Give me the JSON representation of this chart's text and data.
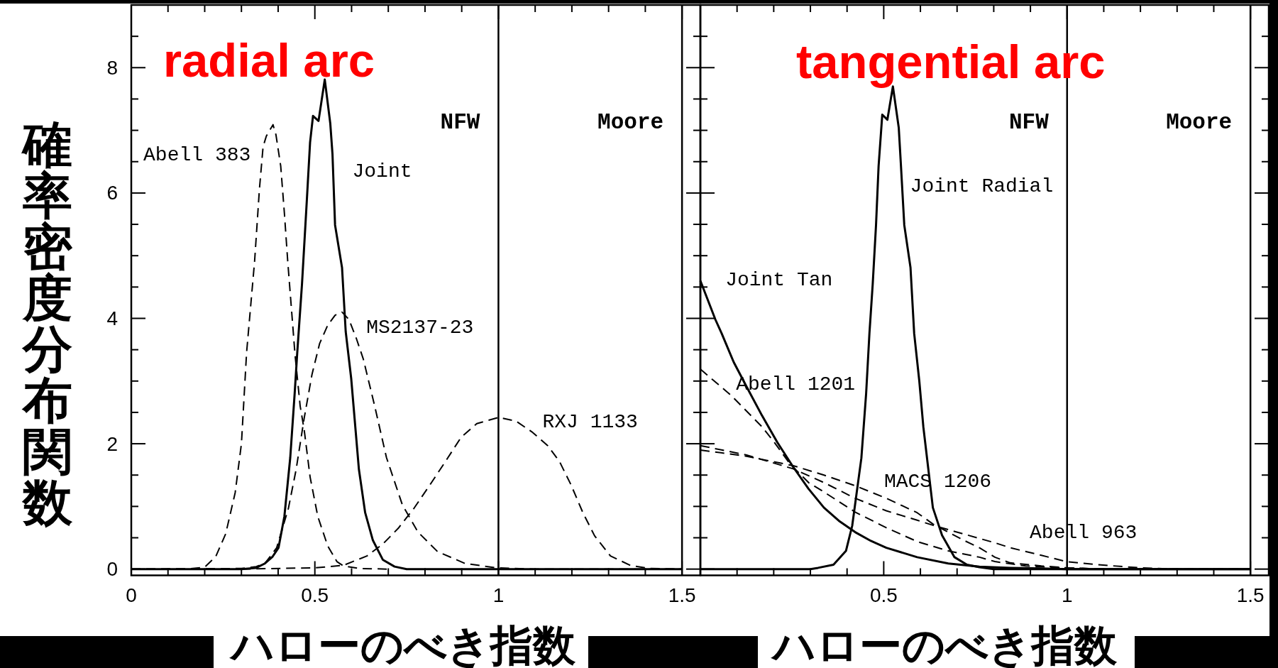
{
  "chart_data": [
    {
      "type": "line",
      "title": "radial arc",
      "xlabel": "ハローのべき指数",
      "ylabel": "確率密度分布関数",
      "xlim": [
        0,
        1.55
      ],
      "ylim": [
        -0.1,
        9
      ],
      "xticks": [
        0,
        {
          "value": 0.1,
          "label": null
        },
        {
          "value": 0.2,
          "label": null
        },
        {
          "value": 0.3,
          "label": null
        },
        {
          "value": 0.4,
          "label": null
        },
        0.5,
        {
          "value": 0.6,
          "label": null
        },
        {
          "value": 0.7,
          "label": null
        },
        {
          "value": 0.8,
          "label": null
        },
        {
          "value": 0.9,
          "label": null
        },
        1,
        {
          "value": 1.1,
          "label": null
        },
        {
          "value": 1.2,
          "label": null
        },
        {
          "value": 1.3,
          "label": null
        },
        {
          "value": 1.4,
          "label": null
        },
        1.5
      ],
      "yticks": [
        0,
        {
          "value": 0.5,
          "label": null
        },
        {
          "value": 1,
          "label": null
        },
        {
          "value": 1.5,
          "label": null
        },
        2,
        {
          "value": 2.5,
          "label": null
        },
        {
          "value": 3,
          "label": null
        },
        {
          "value": 3.5,
          "label": null
        },
        4,
        {
          "value": 4.5,
          "label": null
        },
        {
          "value": 5,
          "label": null
        },
        {
          "value": 5.5,
          "label": null
        },
        6,
        {
          "value": 6.5,
          "label": null
        },
        {
          "value": 7,
          "label": null
        },
        {
          "value": 7.5,
          "label": null
        },
        8,
        {
          "value": 8.5,
          "label": null
        }
      ],
      "ref_lines": [
        {
          "axis": "x",
          "value": 1,
          "label": "NFW"
        },
        {
          "axis": "x",
          "value": 1.5,
          "label": "Moore"
        }
      ],
      "series": [
        {
          "name": "Abell 383",
          "color": "#000000",
          "line_style": "dashed",
          "x": [
            0,
            0.15,
            0.2,
            0.23,
            0.257,
            0.283,
            0.3,
            0.314,
            0.336,
            0.349,
            0.359,
            0.368,
            0.386,
            0.394,
            0.407,
            0.417,
            0.426,
            0.436,
            0.446,
            0.46,
            0.471,
            0.487,
            0.508,
            0.535,
            0.56,
            0.578,
            0.62,
            0.7
          ],
          "values": [
            0,
            0,
            0.03,
            0.2,
            0.56,
            1.22,
            2.0,
            3.45,
            4.92,
            6.06,
            6.74,
            6.91,
            7.09,
            6.93,
            6.43,
            5.68,
            4.92,
            4.17,
            3.42,
            2.6,
            2.22,
            1.47,
            0.84,
            0.37,
            0.12,
            0.05,
            0.01,
            0
          ]
        },
        {
          "name": "Joint",
          "color": "#000000",
          "line_style": "solid",
          "x": [
            0,
            0.3,
            0.34,
            0.364,
            0.385,
            0.401,
            0.417,
            0.433,
            0.445,
            0.452,
            0.465,
            0.478,
            0.487,
            0.495,
            0.51,
            0.527,
            0.542,
            0.548,
            0.555,
            0.574,
            0.584,
            0.599,
            0.62,
            0.637,
            0.658,
            0.685,
            0.717,
            0.75,
            1.5
          ],
          "values": [
            0,
            0,
            0.02,
            0.09,
            0.2,
            0.34,
            0.84,
            1.78,
            2.8,
            3.45,
            4.55,
            5.87,
            6.81,
            7.23,
            7.15,
            7.81,
            7.11,
            6.62,
            5.49,
            4.81,
            3.79,
            3.04,
            1.59,
            0.9,
            0.46,
            0.15,
            0.04,
            0,
            0
          ]
        },
        {
          "name": "MS2137-23",
          "color": "#000000",
          "line_style": "dashed",
          "x": [
            0,
            0.3,
            0.34,
            0.364,
            0.396,
            0.428,
            0.449,
            0.471,
            0.492,
            0.513,
            0.535,
            0.555,
            0.574,
            0.593,
            0.613,
            0.632,
            0.663,
            0.695,
            0.738,
            0.781,
            0.834,
            0.909,
            0.995,
            1.1,
            1.5
          ],
          "values": [
            0,
            0.01,
            0.04,
            0.09,
            0.34,
            0.97,
            1.59,
            2.41,
            3.1,
            3.6,
            3.89,
            4.05,
            4.1,
            3.98,
            3.68,
            3.35,
            2.6,
            1.78,
            1.03,
            0.59,
            0.28,
            0.09,
            0.02,
            0,
            0
          ]
        },
        {
          "name": "RXJ 1133",
          "color": "#000000",
          "line_style": "dashed",
          "x": [
            0.3,
            0.5,
            0.578,
            0.642,
            0.685,
            0.727,
            0.77,
            0.813,
            0.856,
            0.898,
            0.941,
            1.0,
            1.048,
            1.091,
            1.134,
            1.166,
            1.198,
            1.23,
            1.262,
            1.305,
            1.359,
            1.41,
            1.5
          ],
          "values": [
            0,
            0.02,
            0.06,
            0.21,
            0.4,
            0.65,
            0.97,
            1.34,
            1.72,
            2.1,
            2.32,
            2.42,
            2.36,
            2.19,
            1.97,
            1.72,
            1.34,
            0.9,
            0.53,
            0.21,
            0.06,
            0.01,
            0
          ]
        }
      ]
    },
    {
      "type": "line",
      "title": "tangential arc",
      "xlabel": "ハローのべき指数",
      "tick_labels": "x",
      "xlim": [
        0,
        1.55
      ],
      "ylim": [
        -0.1,
        9
      ],
      "xticks": [
        {
          "value": 0,
          "label": null
        },
        {
          "value": 0.1,
          "label": null
        },
        {
          "value": 0.2,
          "label": null
        },
        {
          "value": 0.3,
          "label": null
        },
        {
          "value": 0.4,
          "label": null
        },
        0.5,
        {
          "value": 0.6,
          "label": null
        },
        {
          "value": 0.7,
          "label": null
        },
        {
          "value": 0.8,
          "label": null
        },
        {
          "value": 0.9,
          "label": null
        },
        1,
        {
          "value": 1.1,
          "label": null
        },
        {
          "value": 1.2,
          "label": null
        },
        {
          "value": 1.3,
          "label": null
        },
        {
          "value": 1.4,
          "label": null
        },
        1.5
      ],
      "yticks": [
        0,
        {
          "value": 0.5,
          "label": null
        },
        {
          "value": 1,
          "label": null
        },
        {
          "value": 1.5,
          "label": null
        },
        2,
        {
          "value": 2.5,
          "label": null
        },
        {
          "value": 3,
          "label": null
        },
        {
          "value": 3.5,
          "label": null
        },
        4,
        {
          "value": 4.5,
          "label": null
        },
        {
          "value": 5,
          "label": null
        },
        {
          "value": 5.5,
          "label": null
        },
        6,
        {
          "value": 6.5,
          "label": null
        },
        {
          "value": 7,
          "label": null
        },
        {
          "value": 7.5,
          "label": null
        },
        8,
        {
          "value": 8.5,
          "label": null
        }
      ],
      "ref_lines": [
        {
          "axis": "x",
          "value": 1,
          "label": "NFW"
        },
        {
          "axis": "x",
          "value": 1.5,
          "label": "Moore"
        }
      ],
      "series": [
        {
          "name": "Joint Tan",
          "color": "#000000",
          "line_style": "solid",
          "x": [
            0,
            0.041,
            0.058,
            0.091,
            0.126,
            0.168,
            0.21,
            0.253,
            0.295,
            0.337,
            0.38,
            0.422,
            0.465,
            0.507,
            0.591,
            0.676,
            0.761,
            0.845,
            0.93,
            1.0,
            1.5
          ],
          "values": [
            4.6,
            3.98,
            3.76,
            3.3,
            2.91,
            2.45,
            2.02,
            1.63,
            1.28,
            0.98,
            0.76,
            0.59,
            0.45,
            0.34,
            0.19,
            0.09,
            0.04,
            0.02,
            0.01,
            0,
            0
          ]
        },
        {
          "name": "Joint Radial",
          "color": "#000000",
          "line_style": "solid",
          "x": [
            0,
            0.3,
            0.321,
            0.363,
            0.397,
            0.414,
            0.439,
            0.452,
            0.461,
            0.47,
            0.479,
            0.486,
            0.496,
            0.51,
            0.525,
            0.541,
            0.547,
            0.556,
            0.573,
            0.583,
            0.597,
            0.608,
            0.634,
            0.659,
            0.693,
            0.727,
            0.761,
            0.8,
            1.5
          ],
          "values": [
            0,
            0,
            0.02,
            0.07,
            0.29,
            0.69,
            1.77,
            2.8,
            3.76,
            4.55,
            5.49,
            6.43,
            7.25,
            7.17,
            7.7,
            7.04,
            6.43,
            5.49,
            4.81,
            3.76,
            3.0,
            2.27,
            0.98,
            0.54,
            0.19,
            0.07,
            0.03,
            0,
            0
          ]
        },
        {
          "name": "Abell 1201",
          "color": "#000000",
          "line_style": "dashed",
          "x": [
            0,
            0.084,
            0.168,
            0.202,
            0.244,
            0.295,
            0.337,
            0.422,
            0.507,
            0.591,
            0.676,
            0.761,
            0.803,
            0.887,
            0.997,
            1.1,
            1.5
          ],
          "values": [
            3.19,
            2.77,
            2.27,
            2.02,
            1.68,
            1.38,
            1.23,
            0.91,
            0.66,
            0.44,
            0.29,
            0.19,
            0.12,
            0.05,
            0.02,
            0,
            0
          ]
        },
        {
          "name": "MACS 1206",
          "color": "#000000",
          "line_style": "dashed",
          "x": [
            0,
            0.126,
            0.253,
            0.337,
            0.422,
            0.507,
            0.591,
            0.634,
            0.718,
            0.761,
            0.803,
            0.845,
            0.93,
            1.0,
            1.1,
            1.5
          ],
          "values": [
            1.9,
            1.8,
            1.65,
            1.5,
            1.33,
            1.13,
            0.9,
            0.72,
            0.46,
            0.34,
            0.19,
            0.1,
            0.05,
            0.02,
            0,
            0
          ]
        },
        {
          "name": "Abell 963",
          "color": "#000000",
          "line_style": "dashed",
          "x": [
            0,
            0.126,
            0.253,
            0.337,
            0.422,
            0.507,
            0.591,
            0.634,
            0.718,
            0.803,
            0.845,
            0.93,
            0.997,
            1.082,
            1.2,
            1.3,
            1.5
          ],
          "values": [
            1.97,
            1.82,
            1.6,
            1.38,
            1.13,
            0.93,
            0.78,
            0.7,
            0.56,
            0.42,
            0.34,
            0.22,
            0.12,
            0.07,
            0.02,
            0,
            0
          ]
        }
      ]
    }
  ]
}
